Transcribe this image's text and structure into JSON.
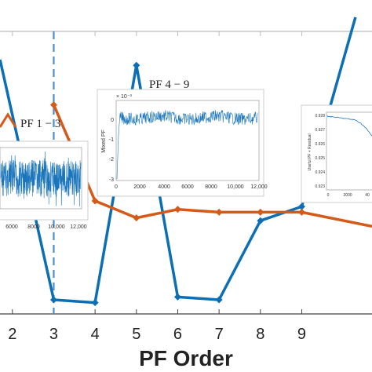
{
  "chart_data": {
    "type": "line",
    "xlabel": "PF Order",
    "x_ticks": [
      "2",
      "3",
      "4",
      "5",
      "6",
      "7",
      "8",
      "9"
    ],
    "xlim": [
      1.7,
      10.7
    ],
    "ylim": [
      0,
      1
    ],
    "grid": false,
    "divider_x": 3,
    "series": [
      {
        "color": "#0c6fb6",
        "x": [
          1.7,
          3,
          4,
          5,
          6,
          7,
          8,
          9,
          10.3
        ],
        "values": [
          0.9,
          0.05,
          0.04,
          0.88,
          0.06,
          0.05,
          0.33,
          0.38,
          1.05
        ]
      },
      {
        "color": "#d45a1a",
        "x": [
          3,
          4,
          5,
          6,
          7,
          8,
          9,
          10.7
        ],
        "values": [
          0.74,
          0.4,
          0.34,
          0.37,
          0.36,
          0.36,
          0.36,
          0.31
        ]
      }
    ],
    "annotations": [
      {
        "label": "PF 1 − 3",
        "color": "#d45a1a"
      },
      {
        "label": "PF 4 − 9"
      }
    ],
    "insets": [
      {
        "id": "pf13",
        "x_ticks": [
          "6000",
          "8000",
          "10,000",
          "12,000"
        ]
      },
      {
        "id": "pf49",
        "ylabel": "Mixed PF",
        "exponent": "× 10⁻³",
        "y_ticks": [
          "0",
          "-1",
          "-2",
          "-3"
        ],
        "x_ticks": [
          "0",
          "2000",
          "4000",
          "6000",
          "8000",
          "10,000",
          "12,000"
        ]
      },
      {
        "id": "residual",
        "ylabel": "Useful PF + Residual",
        "y_ticks": [
          "0.928",
          "0.927",
          "0.926",
          "0.925",
          "0.924",
          "0.923"
        ],
        "x_ticks": [
          "0",
          "2000",
          "40"
        ]
      }
    ]
  }
}
